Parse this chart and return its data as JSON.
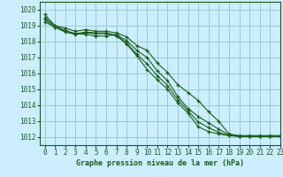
{
  "title": "Graphe pression niveau de la mer (hPa)",
  "background_color": "#cceeff",
  "grid_color": "#99cccc",
  "line_color": "#1a5c1a",
  "xlim": [
    -0.5,
    23
  ],
  "ylim": [
    1011.5,
    1020.5
  ],
  "yticks": [
    1012,
    1013,
    1014,
    1015,
    1016,
    1017,
    1018,
    1019,
    1020
  ],
  "xticks": [
    0,
    1,
    2,
    3,
    4,
    5,
    6,
    7,
    8,
    9,
    10,
    11,
    12,
    13,
    14,
    15,
    16,
    17,
    18,
    19,
    20,
    21,
    22,
    23
  ],
  "series": [
    [
      1019.5,
      1019.0,
      1018.85,
      1018.65,
      1018.75,
      1018.65,
      1018.65,
      1018.55,
      1018.3,
      1017.75,
      1017.45,
      1016.65,
      1016.05,
      1015.3,
      1014.8,
      1014.3,
      1013.6,
      1013.0,
      1012.2,
      1012.1,
      1012.1,
      1012.1,
      1012.1,
      1012.1
    ],
    [
      1019.7,
      1019.0,
      1018.7,
      1018.5,
      1018.45,
      1018.35,
      1018.35,
      1018.45,
      1018.05,
      1017.45,
      1017.0,
      1016.15,
      1015.55,
      1014.55,
      1013.8,
      1013.3,
      1012.9,
      1012.5,
      1012.15,
      1012.05,
      1012.05,
      1012.05,
      1012.05,
      1012.05
    ],
    [
      1019.4,
      1018.9,
      1018.6,
      1018.45,
      1018.55,
      1018.5,
      1018.5,
      1018.35,
      1017.85,
      1017.1,
      1016.25,
      1015.6,
      1015.0,
      1014.15,
      1013.5,
      1012.65,
      1012.35,
      1012.2,
      1012.1,
      1012.05,
      1012.05,
      1012.05,
      1012.05,
      1012.05
    ],
    [
      1019.25,
      1018.9,
      1018.65,
      1018.5,
      1018.6,
      1018.55,
      1018.55,
      1018.4,
      1017.9,
      1017.2,
      1016.6,
      1015.85,
      1015.25,
      1014.35,
      1013.65,
      1012.95,
      1012.6,
      1012.3,
      1012.1,
      1012.05,
      1012.05,
      1012.05,
      1012.05,
      1012.05
    ]
  ]
}
